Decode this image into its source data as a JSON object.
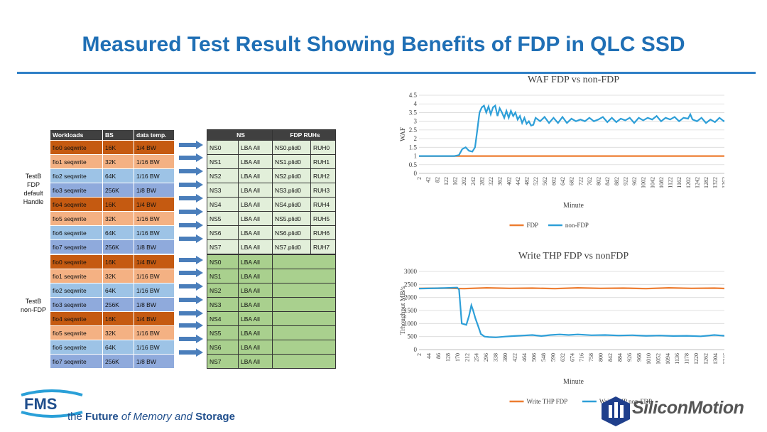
{
  "title": "Measured Test Result Showing Benefits of FDP in QLC SSD",
  "table_headers": {
    "workloads": "Workloads",
    "bs": "BS",
    "temp": "data temp.",
    "ns": "NS",
    "ruhs": "FDP RUHs"
  },
  "group_a_label": "TestB\nFDP\ndefault\nHandle",
  "group_b_label": "TestB\nnon-FDP",
  "rows_a": [
    {
      "w": "fio0 seqwrite",
      "bs": "16K",
      "t": "1/4 BW",
      "ns": "NS0",
      "lba": "LBA All",
      "plid": "NS0.plid0",
      "ruh": "RUH0",
      "color": "dark"
    },
    {
      "w": "fio1 seqwrite",
      "bs": "32K",
      "t": "1/16 BW",
      "ns": "NS1",
      "lba": "LBA All",
      "plid": "NS1.plid0",
      "ruh": "RUH1",
      "color": "light"
    },
    {
      "w": "fio2 seqwrite",
      "bs": "64K",
      "t": "1/16 BW",
      "ns": "NS2",
      "lba": "LBA All",
      "plid": "NS2.plid0",
      "ruh": "RUH2",
      "color": "blue"
    },
    {
      "w": "fio3 seqwrite",
      "bs": "256K",
      "t": "1/8 BW",
      "ns": "NS3",
      "lba": "LBA All",
      "plid": "NS3.plid0",
      "ruh": "RUH3",
      "color": "navy"
    },
    {
      "w": "fio4 seqwrite",
      "bs": "16K",
      "t": "1/4 BW",
      "ns": "NS4",
      "lba": "LBA All",
      "plid": "NS4.plid0",
      "ruh": "RUH4",
      "color": "dark"
    },
    {
      "w": "fio5 seqwrite",
      "bs": "32K",
      "t": "1/16 BW",
      "ns": "NS5",
      "lba": "LBA All",
      "plid": "NS5.plid0",
      "ruh": "RUH5",
      "color": "light"
    },
    {
      "w": "fio6 seqwrite",
      "bs": "64K",
      "t": "1/16 BW",
      "ns": "NS6",
      "lba": "LBA All",
      "plid": "NS6.plid0",
      "ruh": "RUH6",
      "color": "blue"
    },
    {
      "w": "fio7 seqwrite",
      "bs": "256K",
      "t": "1/8 BW",
      "ns": "NS7",
      "lba": "LBA All",
      "plid": "NS7.plid0",
      "ruh": "RUH7",
      "color": "navy"
    }
  ],
  "rows_b": [
    {
      "w": "fio0 seqwrite",
      "bs": "16K",
      "t": "1/4 BW",
      "ns": "NS0",
      "lba": "LBA All",
      "color": "dark"
    },
    {
      "w": "fio1 seqwrite",
      "bs": "32K",
      "t": "1/16 BW",
      "ns": "NS1",
      "lba": "LBA All",
      "color": "light"
    },
    {
      "w": "fio2 seqwrite",
      "bs": "64K",
      "t": "1/16 BW",
      "ns": "NS2",
      "lba": "LBA All",
      "color": "blue"
    },
    {
      "w": "fio3 seqwrite",
      "bs": "256K",
      "t": "1/8 BW",
      "ns": "NS3",
      "lba": "LBA All",
      "color": "navy"
    },
    {
      "w": "fio4 seqwrite",
      "bs": "16K",
      "t": "1/4 BW",
      "ns": "NS4",
      "lba": "LBA All",
      "color": "dark"
    },
    {
      "w": "fio5 seqwrite",
      "bs": "32K",
      "t": "1/16 BW",
      "ns": "NS5",
      "lba": "LBA All",
      "color": "light"
    },
    {
      "w": "fio6 seqwrite",
      "bs": "64K",
      "t": "1/16 BW",
      "ns": "NS6",
      "lba": "LBA All",
      "color": "blue"
    },
    {
      "w": "fio7 seqwrite",
      "bs": "256K",
      "t": "1/8 BW",
      "ns": "NS7",
      "lba": "LBA All",
      "color": "navy"
    }
  ],
  "colors": {
    "fdp": "#ed7d31",
    "non_fdp": "#2e9fd8",
    "title_blue": "#1f6fb5"
  },
  "chart_data": [
    {
      "type": "line",
      "title": "WAF FDP vs non-FDP",
      "xlabel": "Minute",
      "ylabel": "WAF",
      "ylim": [
        0,
        4.5
      ],
      "yticks": [
        0,
        0.5,
        1,
        1.5,
        2,
        2.5,
        3,
        3.5,
        4,
        4.5
      ],
      "xlim": [
        2,
        1380
      ],
      "xticks": [
        2,
        42,
        82,
        122,
        162,
        202,
        242,
        282,
        322,
        362,
        402,
        442,
        482,
        522,
        562,
        602,
        642,
        682,
        722,
        762,
        802,
        842,
        882,
        922,
        962,
        1002,
        1042,
        1082,
        1122,
        1162,
        1202,
        1242,
        1282,
        1322,
        1362
      ],
      "legend": "bottom",
      "series": [
        {
          "name": "FDP",
          "color": "#ed7d31",
          "x": [
            2,
            1380
          ],
          "y": [
            1,
            1
          ]
        },
        {
          "name": "non-FDP",
          "color": "#2e9fd8",
          "x": [
            2,
            160,
            180,
            195,
            210,
            225,
            240,
            252,
            262,
            272,
            282,
            292,
            302,
            312,
            322,
            332,
            342,
            352,
            362,
            372,
            382,
            392,
            402,
            412,
            422,
            432,
            442,
            452,
            462,
            472,
            482,
            492,
            502,
            512,
            522,
            542,
            562,
            582,
            602,
            622,
            642,
            662,
            682,
            702,
            722,
            742,
            762,
            782,
            802,
            822,
            842,
            862,
            882,
            902,
            922,
            942,
            962,
            982,
            1002,
            1022,
            1042,
            1062,
            1082,
            1102,
            1122,
            1142,
            1162,
            1182,
            1202,
            1212,
            1222,
            1242,
            1262,
            1282,
            1302,
            1322,
            1342,
            1362,
            1380
          ],
          "y": [
            1,
            1,
            1.05,
            1.4,
            1.5,
            1.3,
            1.25,
            1.5,
            2.5,
            3.5,
            3.8,
            3.9,
            3.5,
            3.85,
            3.4,
            3.8,
            3.9,
            3.3,
            3.75,
            3.5,
            3.2,
            3.6,
            3.2,
            3.6,
            3.3,
            3.5,
            3.1,
            3.3,
            2.9,
            3.2,
            2.85,
            3.0,
            2.75,
            2.8,
            3.2,
            3.0,
            3.25,
            2.9,
            3.2,
            2.9,
            3.25,
            2.9,
            3.15,
            3.0,
            3.1,
            3.0,
            3.2,
            3.0,
            3.1,
            3.25,
            2.95,
            3.2,
            2.95,
            3.15,
            3.05,
            3.2,
            2.9,
            3.2,
            3.05,
            3.2,
            3.1,
            3.3,
            3.0,
            3.2,
            3.1,
            3.25,
            3.0,
            3.2,
            3.15,
            3.4,
            3.1,
            3.0,
            3.2,
            2.9,
            3.1,
            2.95,
            3.2,
            3.0,
            3.25
          ]
        }
      ]
    },
    {
      "type": "line",
      "title": "Write THP FDP vs nonFDP",
      "xlabel": "Minute",
      "ylabel": "Trhoughput MB/s",
      "ylim": [
        0,
        3000
      ],
      "yticks": [
        0,
        500,
        1000,
        1500,
        2000,
        2500,
        3000
      ],
      "xlim": [
        2,
        1360
      ],
      "xticks": [
        2,
        44,
        86,
        128,
        170,
        212,
        254,
        296,
        338,
        380,
        422,
        464,
        506,
        548,
        590,
        632,
        674,
        716,
        758,
        800,
        842,
        884,
        926,
        968,
        1010,
        1052,
        1094,
        1136,
        1178,
        1220,
        1262,
        1304,
        1346
      ],
      "legend": "bottom",
      "series": [
        {
          "name": "Write THP FDP",
          "color": "#ed7d31",
          "x": [
            2,
            100,
            200,
            300,
            400,
            500,
            600,
            700,
            800,
            900,
            1000,
            1100,
            1200,
            1300,
            1360
          ],
          "y": [
            2350,
            2360,
            2340,
            2370,
            2350,
            2360,
            2340,
            2370,
            2350,
            2360,
            2340,
            2370,
            2350,
            2360,
            2340
          ]
        },
        {
          "name": "Write THP non-FDP",
          "color": "#2e9fd8",
          "x": [
            2,
            100,
            170,
            178,
            190,
            210,
            222,
            232,
            240,
            250,
            262,
            274,
            290,
            310,
            340,
            380,
            420,
            460,
            500,
            540,
            580,
            620,
            660,
            700,
            760,
            820,
            880,
            940,
            1000,
            1060,
            1120,
            1180,
            1240,
            1300,
            1360
          ],
          "y": [
            2340,
            2360,
            2380,
            2300,
            1000,
            950,
            1300,
            1700,
            1500,
            1200,
            900,
            600,
            500,
            480,
            470,
            500,
            520,
            540,
            560,
            520,
            560,
            580,
            560,
            580,
            550,
            560,
            540,
            550,
            530,
            540,
            520,
            530,
            510,
            560,
            520
          ]
        }
      ]
    }
  ],
  "footer": {
    "tagline_a": "the ",
    "tagline_b": "Future ",
    "tagline_c": "of Memory ",
    "tagline_d": "and ",
    "tagline_e": "Storage",
    "brand": "SiliconMotion",
    "fms": "FMS"
  }
}
